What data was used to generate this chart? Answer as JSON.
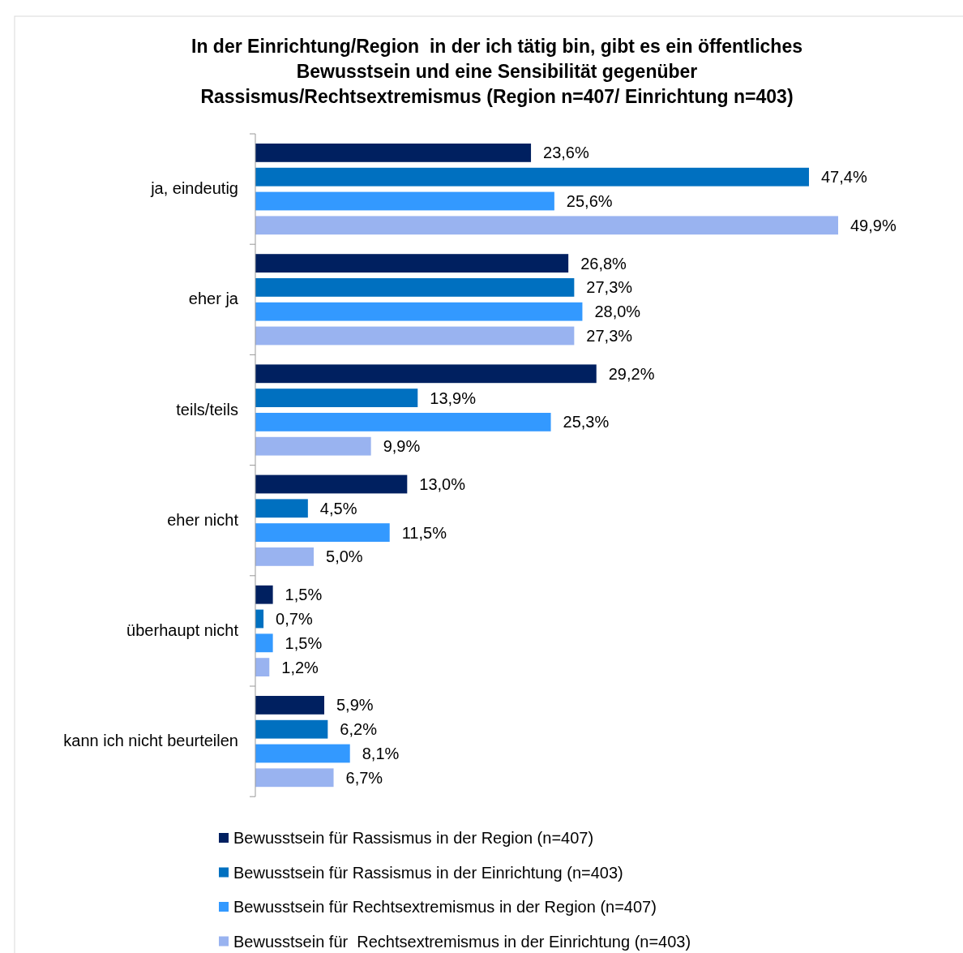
{
  "chart_data": {
    "type": "bar",
    "orientation": "horizontal",
    "title": "In der Einrichtung/Region  in der ich tätig bin, gibt es ein öffentliches\nBewusstsein und eine Sensibilität gegenüber\nRassismus/Rechtsextremismus (Region n=407/ Einrichtung n=403)",
    "categories": [
      "ja, eindeutig",
      "eher ja",
      "teils/teils",
      "eher nicht",
      "überhaupt nicht",
      "kann ich nicht beurteilen"
    ],
    "series": [
      {
        "name": "Bewusstsein für Rassismus in der Region (n=407)",
        "color": "#002060",
        "values": [
          23.6,
          26.8,
          29.2,
          13.0,
          1.5,
          5.9
        ],
        "value_labels": [
          "23,6%",
          "26,8%",
          "29,2%",
          "13,0%",
          "1,5%",
          "5,9%"
        ]
      },
      {
        "name": "Bewusstsein für Rassismus in der Einrichtung (n=403)",
        "color": "#0070c0",
        "values": [
          47.4,
          27.3,
          13.9,
          4.5,
          0.7,
          6.2
        ],
        "value_labels": [
          "47,4%",
          "27,3%",
          "13,9%",
          "4,5%",
          "0,7%",
          "6,2%"
        ]
      },
      {
        "name": "Bewusstsein für Rechtsextremismus in der Region (n=407)",
        "color": "#3399ff",
        "values": [
          25.6,
          28.0,
          25.3,
          11.5,
          1.5,
          8.1
        ],
        "value_labels": [
          "25,6%",
          "28,0%",
          "25,3%",
          "11,5%",
          "1,5%",
          "8,1%"
        ]
      },
      {
        "name": "Bewusstsein für  Rechtsextremismus in der Einrichtung (n=403)",
        "color": "#99b3f0",
        "values": [
          49.9,
          27.3,
          9.9,
          5.0,
          1.2,
          6.7
        ],
        "value_labels": [
          "49,9%",
          "27,3%",
          "9,9%",
          "5,0%",
          "1,2%",
          "6,7%"
        ]
      }
    ],
    "legend": "bottom"
  }
}
